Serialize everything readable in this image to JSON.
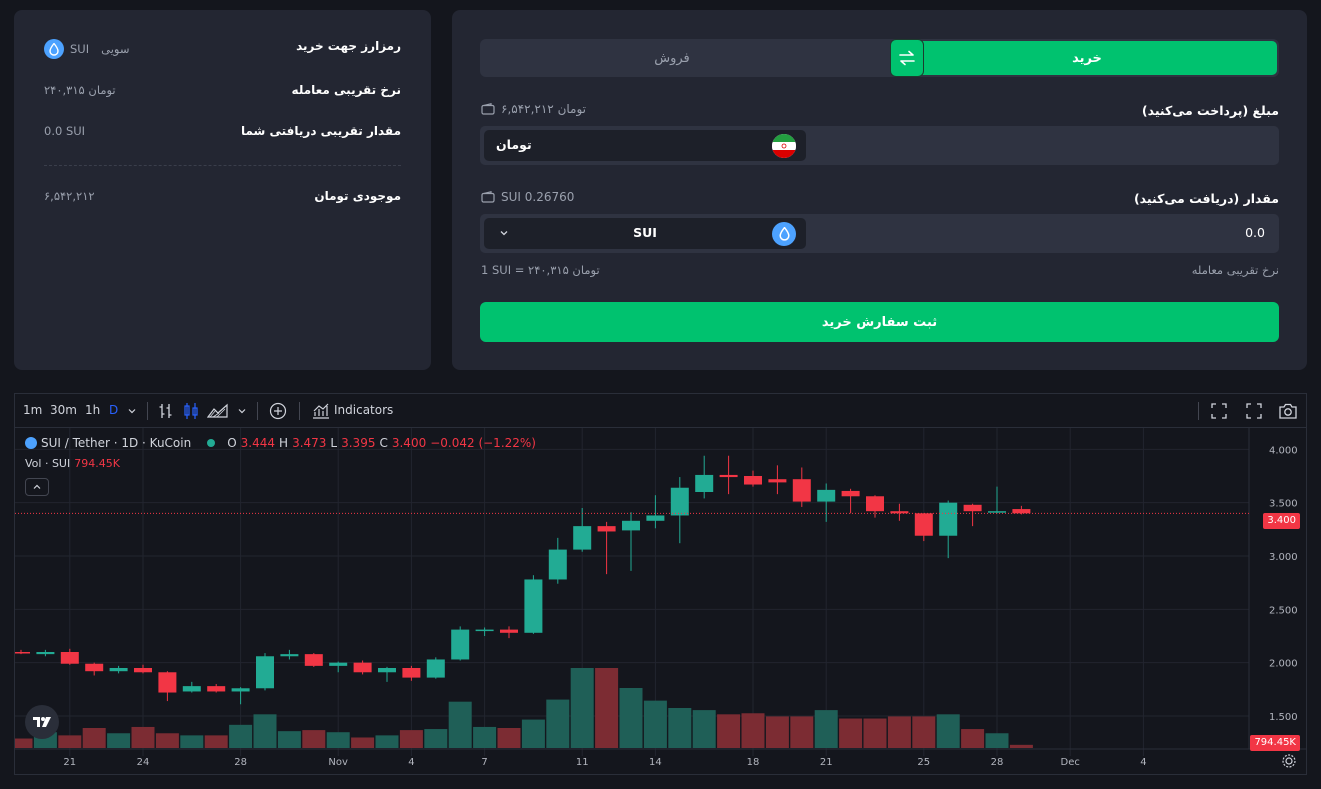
{
  "info": {
    "crypto_label": "رمزارز جهت خرید",
    "crypto_value": "سویی",
    "crypto_symbol": "SUI",
    "rate_label": "نرخ تقریبی معامله",
    "rate_value": "تومان ۲۴۰,۳۱۵",
    "receive_label": "مقدار تقریبی دریافتی شما",
    "receive_value": "0.0 SUI",
    "balance_label": "موجودی تومان",
    "balance_value": "۶,۵۴۲,۲۱۲"
  },
  "trade": {
    "tab_buy": "خرید",
    "tab_sell": "فروش",
    "pay_label": "مبلغ (پرداخت می‌کنید)",
    "pay_balance": "۶,۵۴۲,۲۱۲ تومان",
    "pay_currency": "تومان",
    "receive_label": "مقدار (دریافت می‌کنید)",
    "receive_balance": "SUI 0.26760",
    "receive_currency": "SUI",
    "receive_amount": "0.0",
    "rate_label": "نرخ تقریبی معامله",
    "rate_value": "1 SUI = ۲۴۰,۳۱۵ تومان",
    "submit": "ثبت سفارش خرید"
  },
  "chart_toolbar": {
    "intervals": [
      "1m",
      "30m",
      "1h",
      "D"
    ],
    "active_interval": "D",
    "indicators": "Indicators"
  },
  "chart_legend": {
    "symbol": "SUI / Tether · 1D · KuCoin",
    "o_key": "O",
    "o_val": "3.444",
    "h_key": "H",
    "h_val": "3.473",
    "l_key": "L",
    "l_val": "3.395",
    "c_key": "C",
    "c_val": "3.400",
    "change": "−0.042 (−1.22%)",
    "vol_label": "Vol · SUI",
    "vol_value": "794.45K"
  },
  "colors": {
    "up": "#22ab94",
    "down": "#f23645",
    "accent": "#00c26f"
  },
  "chart_data": {
    "type": "candlestick",
    "title": "SUI / Tether · 1D · KuCoin",
    "y_ticks": [
      "4.000",
      "3.500",
      "3.000",
      "2.500",
      "2.000",
      "1.500"
    ],
    "ylim": [
      1.2,
      4.2
    ],
    "x_ticks": [
      {
        "i": 2,
        "label": "21"
      },
      {
        "i": 5,
        "label": "24"
      },
      {
        "i": 9,
        "label": "28"
      },
      {
        "i": 13,
        "label": "Nov"
      },
      {
        "i": 16,
        "label": "4"
      },
      {
        "i": 19,
        "label": "7"
      },
      {
        "i": 23,
        "label": "11"
      },
      {
        "i": 26,
        "label": "14"
      },
      {
        "i": 30,
        "label": "18"
      },
      {
        "i": 33,
        "label": "21"
      },
      {
        "i": 37,
        "label": "25"
      },
      {
        "i": 40,
        "label": "28"
      },
      {
        "i": 43,
        "label": "Dec"
      },
      {
        "i": 46,
        "label": "4"
      }
    ],
    "last_price": "3.400",
    "last_volume": "794.45K",
    "candles": [
      {
        "o": 2.1,
        "h": 2.12,
        "l": 2.08,
        "c": 2.09,
        "v": 0.9
      },
      {
        "o": 2.08,
        "h": 2.12,
        "l": 2.06,
        "c": 2.1,
        "v": 1.5
      },
      {
        "o": 2.1,
        "h": 2.13,
        "l": 1.98,
        "c": 1.99,
        "v": 1.2
      },
      {
        "o": 1.99,
        "h": 2.0,
        "l": 1.88,
        "c": 1.92,
        "v": 1.9
      },
      {
        "o": 1.92,
        "h": 1.97,
        "l": 1.9,
        "c": 1.95,
        "v": 1.4
      },
      {
        "o": 1.95,
        "h": 1.98,
        "l": 1.9,
        "c": 1.91,
        "v": 2.0
      },
      {
        "o": 1.91,
        "h": 1.92,
        "l": 1.64,
        "c": 1.72,
        "v": 1.4
      },
      {
        "o": 1.73,
        "h": 1.82,
        "l": 1.72,
        "c": 1.78,
        "v": 1.2
      },
      {
        "o": 1.78,
        "h": 1.8,
        "l": 1.72,
        "c": 1.73,
        "v": 1.2
      },
      {
        "o": 1.73,
        "h": 1.77,
        "l": 1.61,
        "c": 1.76,
        "v": 2.2
      },
      {
        "o": 1.76,
        "h": 2.09,
        "l": 1.74,
        "c": 2.06,
        "v": 3.2
      },
      {
        "o": 2.06,
        "h": 2.12,
        "l": 2.03,
        "c": 2.08,
        "v": 1.6
      },
      {
        "o": 2.08,
        "h": 2.09,
        "l": 1.96,
        "c": 1.97,
        "v": 1.7
      },
      {
        "o": 1.97,
        "h": 2.01,
        "l": 1.91,
        "c": 2.0,
        "v": 1.5
      },
      {
        "o": 2.0,
        "h": 2.02,
        "l": 1.89,
        "c": 1.91,
        "v": 1.0
      },
      {
        "o": 1.91,
        "h": 1.96,
        "l": 1.82,
        "c": 1.95,
        "v": 1.2
      },
      {
        "o": 1.95,
        "h": 1.97,
        "l": 1.83,
        "c": 1.86,
        "v": 1.7
      },
      {
        "o": 1.86,
        "h": 2.05,
        "l": 1.85,
        "c": 2.03,
        "v": 1.8
      },
      {
        "o": 2.03,
        "h": 2.34,
        "l": 2.02,
        "c": 2.31,
        "v": 4.4
      },
      {
        "o": 2.3,
        "h": 2.33,
        "l": 2.25,
        "c": 2.31,
        "v": 2.0
      },
      {
        "o": 2.31,
        "h": 2.34,
        "l": 2.23,
        "c": 2.28,
        "v": 1.9
      },
      {
        "o": 2.28,
        "h": 2.82,
        "l": 2.27,
        "c": 2.78,
        "v": 2.7
      },
      {
        "o": 2.78,
        "h": 3.17,
        "l": 2.74,
        "c": 3.06,
        "v": 4.6
      },
      {
        "o": 3.06,
        "h": 3.45,
        "l": 3.04,
        "c": 3.28,
        "v": 7.6
      },
      {
        "o": 3.28,
        "h": 3.32,
        "l": 2.83,
        "c": 3.23,
        "v": 7.6
      },
      {
        "o": 3.24,
        "h": 3.41,
        "l": 2.86,
        "c": 3.33,
        "v": 5.7
      },
      {
        "o": 3.33,
        "h": 3.57,
        "l": 3.26,
        "c": 3.38,
        "v": 4.5
      },
      {
        "o": 3.38,
        "h": 3.74,
        "l": 3.12,
        "c": 3.64,
        "v": 3.8
      },
      {
        "o": 3.6,
        "h": 3.94,
        "l": 3.54,
        "c": 3.76,
        "v": 3.6
      },
      {
        "o": 3.76,
        "h": 3.94,
        "l": 3.58,
        "c": 3.74,
        "v": 3.2
      },
      {
        "o": 3.75,
        "h": 3.8,
        "l": 3.65,
        "c": 3.67,
        "v": 3.3
      },
      {
        "o": 3.72,
        "h": 3.85,
        "l": 3.58,
        "c": 3.69,
        "v": 3.0
      },
      {
        "o": 3.72,
        "h": 3.83,
        "l": 3.46,
        "c": 3.51,
        "v": 3.0
      },
      {
        "o": 3.51,
        "h": 3.68,
        "l": 3.32,
        "c": 3.62,
        "v": 3.6
      },
      {
        "o": 3.61,
        "h": 3.63,
        "l": 3.4,
        "c": 3.56,
        "v": 2.8
      },
      {
        "o": 3.56,
        "h": 3.57,
        "l": 3.36,
        "c": 3.42,
        "v": 2.8
      },
      {
        "o": 3.42,
        "h": 3.49,
        "l": 3.33,
        "c": 3.4,
        "v": 3.0
      },
      {
        "o": 3.4,
        "h": 3.4,
        "l": 3.14,
        "c": 3.19,
        "v": 3.0
      },
      {
        "o": 3.19,
        "h": 3.52,
        "l": 2.98,
        "c": 3.5,
        "v": 3.2
      },
      {
        "o": 3.48,
        "h": 3.49,
        "l": 3.28,
        "c": 3.42,
        "v": 1.8
      },
      {
        "o": 3.42,
        "h": 3.65,
        "l": 3.4,
        "c": 3.42,
        "v": 1.4
      },
      {
        "o": 3.44,
        "h": 3.47,
        "l": 3.39,
        "c": 3.4,
        "v": 0.3
      }
    ]
  }
}
